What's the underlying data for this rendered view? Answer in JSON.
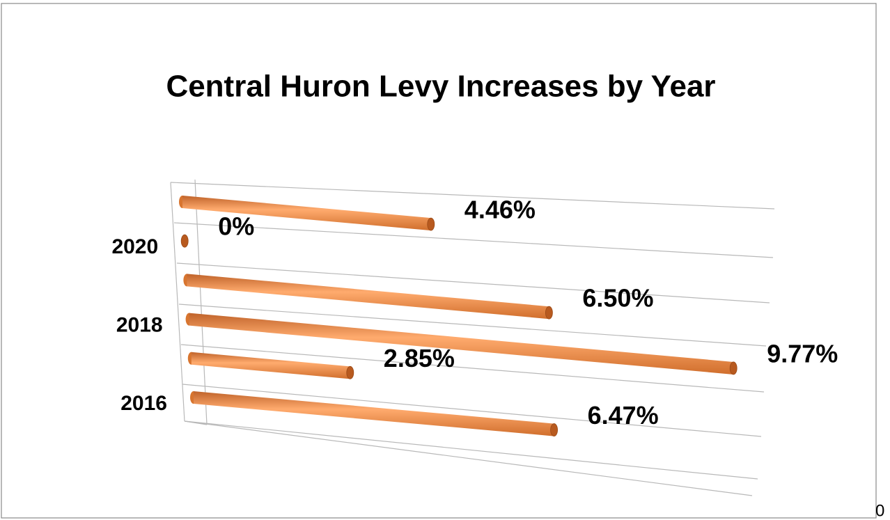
{
  "chart_data": {
    "type": "bar",
    "orientation": "horizontal",
    "title": "Central Huron Levy Increases by Year",
    "categories": [
      "2016",
      null,
      "2018",
      null,
      "2020",
      null
    ],
    "values": [
      6.47,
      2.85,
      9.77,
      6.5,
      0,
      4.46
    ],
    "value_labels": [
      "6.47%",
      "2.85%",
      "9.77%",
      "6.50%",
      "0%",
      "4.46%"
    ],
    "color": "#f79646",
    "xlim": [
      0,
      10
    ],
    "corner_text": "0"
  }
}
